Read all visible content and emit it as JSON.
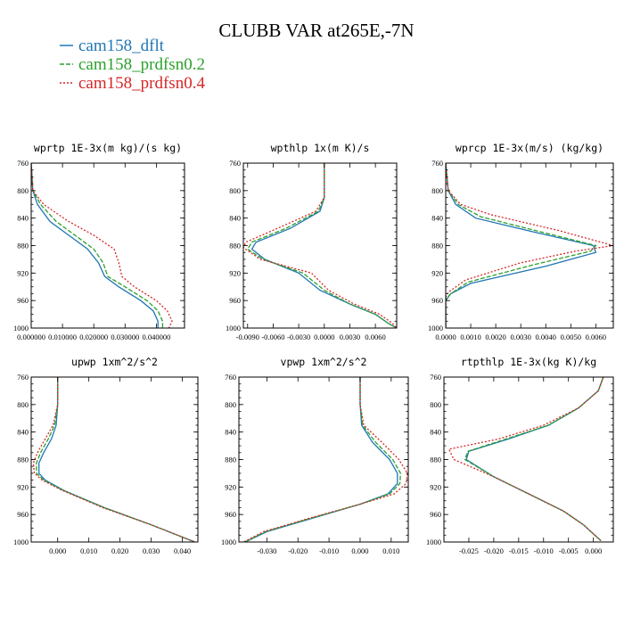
{
  "title": "CLUBB VAR at265E,-7N",
  "colors": {
    "dflt": "#1f77b4",
    "prdfsn02": "#2ca02c",
    "prdfsn04": "#d62728"
  },
  "legend": [
    {
      "name": "cam158_dflt",
      "color": "#1f77b4",
      "dash": "solid"
    },
    {
      "name": "cam158_prdfsn0.2",
      "color": "#2ca02c",
      "dash": "dash"
    },
    {
      "name": "cam158_prdfsn0.4",
      "color": "#d62728",
      "dash": "dot"
    }
  ],
  "chart_data": [
    {
      "type": "line",
      "title": "wprtp  1E-3x(m kg)/(s kg)",
      "xlim": [
        0.0,
        0.049
      ],
      "ylim": [
        760,
        1000
      ],
      "y_inverted": true,
      "xticks": [
        0.0,
        0.01,
        0.02,
        0.03,
        0.04
      ],
      "xtick_labels": [
        "0.000000",
        "0.010000",
        "0.020000",
        "0.030000",
        "0.040000"
      ],
      "yticks": [
        760,
        800,
        840,
        880,
        920,
        960,
        1000
      ],
      "series": [
        {
          "name": "cam158_dflt",
          "x": [
            0.0,
            0.0005,
            0.002,
            0.006,
            0.012,
            0.018,
            0.0215,
            0.0235,
            0.028,
            0.035,
            0.039,
            0.0405,
            0.0405
          ],
          "y": [
            760,
            800,
            820,
            845,
            865,
            885,
            905,
            925,
            940,
            960,
            975,
            990,
            1000
          ]
        },
        {
          "name": "cam158_prdfsn0.2",
          "x": [
            0.0,
            0.0005,
            0.003,
            0.008,
            0.014,
            0.02,
            0.023,
            0.0245,
            0.03,
            0.037,
            0.0405,
            0.042,
            0.042
          ],
          "y": [
            760,
            800,
            820,
            845,
            865,
            885,
            905,
            925,
            940,
            960,
            975,
            990,
            1000
          ]
        },
        {
          "name": "cam158_prdfsn0.4",
          "x": [
            0.0,
            0.0005,
            0.004,
            0.012,
            0.02,
            0.0265,
            0.028,
            0.029,
            0.033,
            0.04,
            0.0435,
            0.045,
            0.044
          ],
          "y": [
            760,
            800,
            820,
            845,
            865,
            885,
            905,
            925,
            940,
            960,
            975,
            990,
            1000
          ]
        }
      ]
    },
    {
      "type": "line",
      "title": "wpthlp  1x(m K)/s",
      "xlim": [
        -0.0095,
        0.0085
      ],
      "ylim": [
        760,
        1000
      ],
      "y_inverted": true,
      "xticks": [
        -0.009,
        -0.006,
        -0.003,
        0.0,
        0.003,
        0.006
      ],
      "xtick_labels": [
        "-0.0090",
        "-0.0060",
        "-0.0030",
        "0.0000",
        "0.0030",
        "0.0060"
      ],
      "yticks": [
        760,
        800,
        840,
        880,
        920,
        960,
        1000
      ],
      "series": [
        {
          "name": "cam158_dflt",
          "x": [
            0.0,
            0.0,
            -0.0005,
            -0.004,
            -0.008,
            -0.0085,
            -0.007,
            -0.003,
            -0.0005,
            0.003,
            0.006,
            0.0075,
            0.0085
          ],
          "y": [
            760,
            810,
            830,
            855,
            875,
            885,
            900,
            920,
            945,
            965,
            980,
            993,
            1000
          ]
        },
        {
          "name": "cam158_prdfsn0.2",
          "x": [
            0.0,
            0.0,
            -0.0007,
            -0.0045,
            -0.0085,
            -0.009,
            -0.0072,
            -0.0025,
            0.0,
            0.003,
            0.006,
            0.0075,
            0.0085
          ],
          "y": [
            760,
            810,
            830,
            855,
            875,
            885,
            900,
            920,
            945,
            965,
            980,
            993,
            1000
          ]
        },
        {
          "name": "cam158_prdfsn0.4",
          "x": [
            0.0,
            0.0,
            -0.001,
            -0.0055,
            -0.0092,
            -0.0095,
            -0.0075,
            -0.0015,
            0.0005,
            0.0035,
            0.0065,
            0.008,
            0.0085
          ],
          "y": [
            760,
            810,
            830,
            855,
            875,
            883,
            900,
            920,
            945,
            965,
            980,
            993,
            1000
          ]
        }
      ]
    },
    {
      "type": "line",
      "title": "wprcp  1E-3x(m/s) (kg/kg)",
      "xlim": [
        0.0,
        0.0067
      ],
      "ylim": [
        760,
        1000
      ],
      "y_inverted": true,
      "xticks": [
        0.0,
        0.001,
        0.002,
        0.003,
        0.004,
        0.005,
        0.006
      ],
      "xtick_labels": [
        "0.0000",
        "0.0010",
        "0.0020",
        "0.0030",
        "0.0040",
        "0.0050",
        "0.0060"
      ],
      "yticks": [
        760,
        800,
        840,
        880,
        920,
        960,
        1000
      ],
      "series": [
        {
          "name": "cam158_dflt",
          "x": [
            0.0,
            0.0001,
            0.0004,
            0.0012,
            0.0035,
            0.0059,
            0.006,
            0.004,
            0.001,
            0.0002,
            0.0,
            0.0
          ],
          "y": [
            760,
            800,
            820,
            840,
            860,
            880,
            890,
            910,
            935,
            950,
            960,
            1000
          ]
        },
        {
          "name": "cam158_prdfsn0.2",
          "x": [
            0.0,
            0.0001,
            0.0005,
            0.0014,
            0.0038,
            0.006,
            0.0058,
            0.0035,
            0.0009,
            0.0002,
            0.0,
            0.0
          ],
          "y": [
            760,
            800,
            820,
            838,
            860,
            880,
            888,
            908,
            933,
            950,
            958,
            1000
          ]
        },
        {
          "name": "cam158_prdfsn0.4",
          "x": [
            0.0,
            0.0001,
            0.0006,
            0.0018,
            0.0045,
            0.0067,
            0.0052,
            0.003,
            0.0008,
            0.0001,
            0.0,
            0.0
          ],
          "y": [
            760,
            800,
            820,
            835,
            858,
            880,
            888,
            905,
            930,
            948,
            955,
            1000
          ]
        }
      ]
    },
    {
      "type": "line",
      "title": "upwp  1xm^2/s^2",
      "xlim": [
        -0.0085,
        0.045
      ],
      "ylim": [
        760,
        1000
      ],
      "y_inverted": true,
      "xticks": [
        0.0,
        0.01,
        0.02,
        0.03,
        0.04
      ],
      "xtick_labels": [
        "0.000",
        "0.010",
        "0.020",
        "0.030",
        "0.040"
      ],
      "yticks": [
        760,
        800,
        840,
        880,
        920,
        960,
        1000
      ],
      "series": [
        {
          "name": "cam158_dflt",
          "x": [
            0.0,
            0.0,
            -0.0005,
            -0.002,
            -0.0045,
            -0.006,
            -0.006,
            -0.004,
            0.002,
            0.015,
            0.03,
            0.044
          ],
          "y": [
            760,
            800,
            830,
            850,
            870,
            885,
            900,
            910,
            925,
            950,
            975,
            1000
          ]
        },
        {
          "name": "cam158_prdfsn0.2",
          "x": [
            0.0,
            0.0,
            -0.001,
            -0.003,
            -0.0055,
            -0.0068,
            -0.0068,
            -0.0045,
            0.0018,
            0.015,
            0.03,
            0.044
          ],
          "y": [
            760,
            800,
            830,
            850,
            870,
            885,
            900,
            910,
            925,
            950,
            975,
            1000
          ]
        },
        {
          "name": "cam158_prdfsn0.4",
          "x": [
            0.0,
            0.0,
            -0.0015,
            -0.004,
            -0.0065,
            -0.0078,
            -0.0075,
            -0.005,
            0.0015,
            0.0145,
            0.03,
            0.044
          ],
          "y": [
            760,
            800,
            830,
            850,
            870,
            885,
            900,
            910,
            925,
            950,
            975,
            1000
          ]
        }
      ]
    },
    {
      "type": "line",
      "title": "vpwp  1xm^2/s^2",
      "xlim": [
        -0.039,
        0.0155
      ],
      "ylim": [
        760,
        1000
      ],
      "y_inverted": true,
      "xticks": [
        -0.03,
        -0.02,
        -0.01,
        0.0,
        0.01
      ],
      "xtick_labels": [
        "-0.030",
        "-0.020",
        "-0.010",
        "0.000",
        "0.010"
      ],
      "yticks": [
        760,
        800,
        840,
        880,
        920,
        960,
        1000
      ],
      "series": [
        {
          "name": "cam158_dflt",
          "x": [
            0.0,
            0.0,
            0.0005,
            0.004,
            0.0095,
            0.012,
            0.012,
            0.009,
            0.0,
            -0.015,
            -0.03,
            -0.037
          ],
          "y": [
            760,
            800,
            830,
            855,
            880,
            900,
            915,
            930,
            945,
            965,
            985,
            1000
          ]
        },
        {
          "name": "cam158_prdfsn0.2",
          "x": [
            0.0,
            0.0,
            0.0008,
            0.005,
            0.0105,
            0.013,
            0.0128,
            0.0095,
            0.0,
            -0.0155,
            -0.0305,
            -0.037
          ],
          "y": [
            760,
            800,
            830,
            855,
            880,
            900,
            915,
            930,
            945,
            965,
            985,
            1000
          ]
        },
        {
          "name": "cam158_prdfsn0.4",
          "x": [
            0.0,
            0.0,
            0.0012,
            0.007,
            0.0125,
            0.0152,
            0.0148,
            0.011,
            0.0,
            -0.016,
            -0.031,
            -0.0375
          ],
          "y": [
            760,
            800,
            830,
            855,
            880,
            900,
            915,
            930,
            945,
            965,
            985,
            1000
          ]
        }
      ]
    },
    {
      "type": "line",
      "title": "rtpthlp  1E-3x(kg K)/kg",
      "xlim": [
        -0.03,
        0.004
      ],
      "ylim": [
        760,
        1000
      ],
      "y_inverted": true,
      "xticks": [
        -0.025,
        -0.02,
        -0.015,
        -0.01,
        -0.005,
        0.0
      ],
      "xtick_labels": [
        "-0.025",
        "-0.020",
        "-0.015",
        "-0.010",
        "-0.005",
        "0.000"
      ],
      "yticks": [
        760,
        800,
        840,
        880,
        920,
        960,
        1000
      ],
      "series": [
        {
          "name": "cam158_dflt",
          "x": [
            0.002,
            0.001,
            -0.003,
            -0.009,
            -0.017,
            -0.025,
            -0.0255,
            -0.02,
            -0.013,
            -0.006,
            -0.002,
            0.0015
          ],
          "y": [
            760,
            780,
            805,
            830,
            850,
            868,
            880,
            905,
            930,
            955,
            975,
            998
          ]
        },
        {
          "name": "cam158_prdfsn0.2",
          "x": [
            0.002,
            0.001,
            -0.003,
            -0.009,
            -0.0175,
            -0.0252,
            -0.0258,
            -0.02,
            -0.013,
            -0.006,
            -0.002,
            0.0015
          ],
          "y": [
            760,
            780,
            805,
            830,
            850,
            868,
            880,
            905,
            930,
            955,
            975,
            998
          ]
        },
        {
          "name": "cam158_prdfsn0.4",
          "x": [
            0.002,
            0.001,
            -0.003,
            -0.01,
            -0.019,
            -0.029,
            -0.028,
            -0.02,
            -0.013,
            -0.006,
            -0.002,
            0.0015
          ],
          "y": [
            760,
            780,
            805,
            830,
            850,
            865,
            880,
            905,
            930,
            955,
            975,
            998
          ]
        }
      ]
    }
  ]
}
